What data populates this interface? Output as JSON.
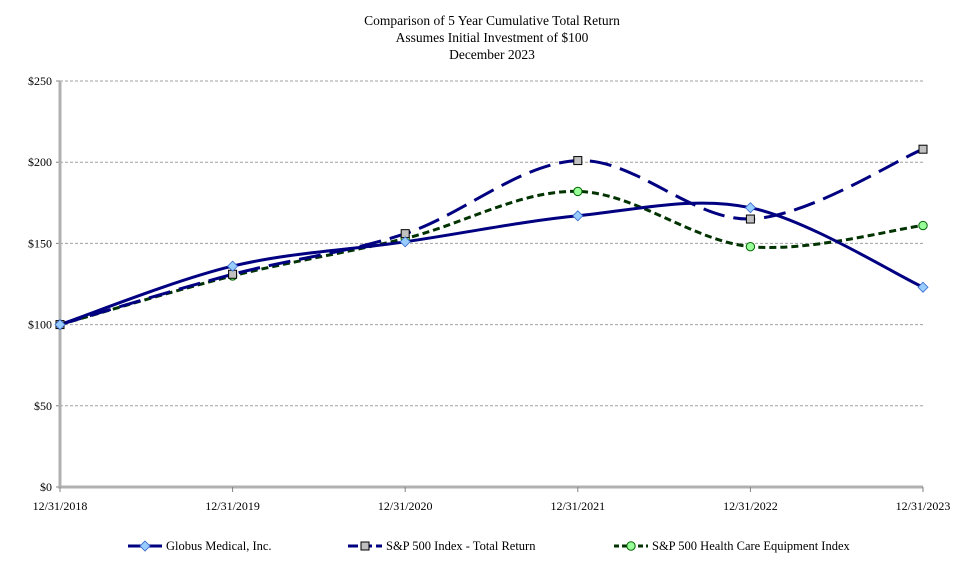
{
  "chart_data": {
    "type": "line",
    "title": "Comparison of 5 Year Cumulative Total Return",
    "subtitle": "Assumes Initial Investment of $100",
    "subtitle2": "December 2023",
    "xlabel": "",
    "ylabel": "",
    "categories": [
      "12/31/2018",
      "12/31/2019",
      "12/31/2020",
      "12/31/2021",
      "12/31/2022",
      "12/31/2023"
    ],
    "y_ticks": [
      "$0",
      "$50",
      "$100",
      "$150",
      "$200",
      "$250"
    ],
    "ylim": [
      0,
      250
    ],
    "grid": "horizontal",
    "legend_position": "bottom",
    "series": [
      {
        "name": "Globus Medical, Inc.",
        "values": [
          100,
          136,
          151,
          167,
          172,
          123
        ],
        "color": "#000080",
        "style": "solid",
        "marker": "diamond",
        "marker_fill": "#99ccff"
      },
      {
        "name": "S&P 500 Index - Total Return",
        "values": [
          100,
          131,
          156,
          201,
          165,
          208
        ],
        "color": "#000080",
        "style": "long-dash",
        "marker": "square",
        "marker_fill": "#c0c0c0"
      },
      {
        "name": "S&P 500 Health Care Equipment Index",
        "values": [
          100,
          130,
          153,
          182,
          148,
          161
        ],
        "color": "#003300",
        "style": "short-dash",
        "marker": "circle",
        "marker_fill": "#99ff99"
      }
    ]
  }
}
